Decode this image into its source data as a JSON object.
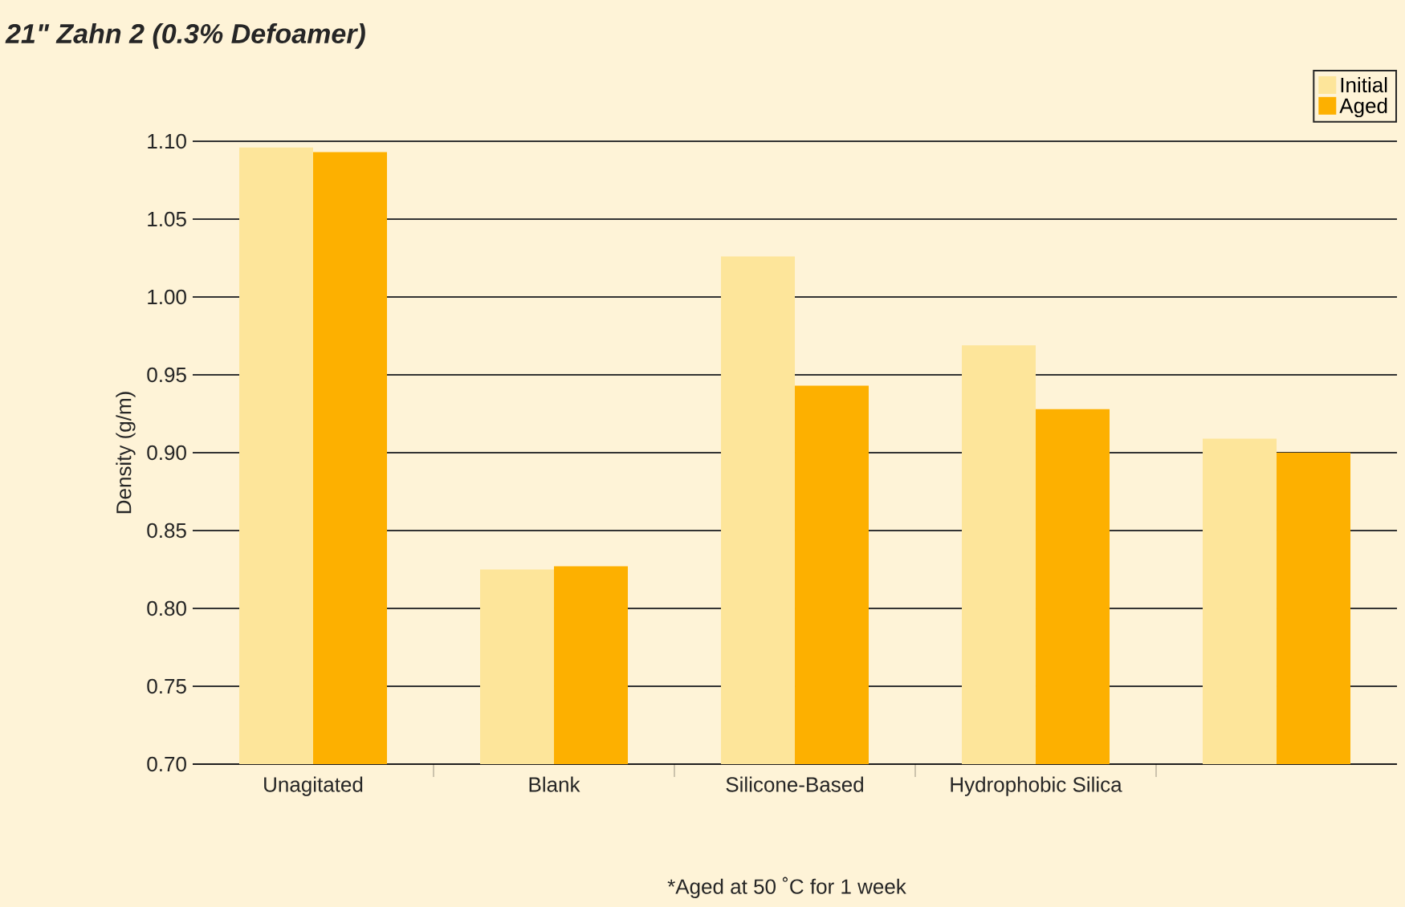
{
  "chart_data": {
    "type": "bar",
    "title": "21\" Zahn 2 (0.3% Defoamer)",
    "ylabel": "Density (g/m)",
    "categories": [
      "Unagitated",
      "Blank",
      "Silicone-Based",
      "Hydrophobic Silica",
      null
    ],
    "series": [
      {
        "name": "Initial",
        "color": "#fde59a",
        "values": [
          1.096,
          0.825,
          1.026,
          0.969,
          0.909
        ]
      },
      {
        "name": "Aged",
        "color": "#fdb000",
        "values": [
          1.093,
          0.827,
          0.943,
          0.928,
          0.9
        ]
      }
    ],
    "ylim": [
      0.7,
      1.1
    ],
    "yticks": [
      {
        "value": 0.7,
        "label": "0.70"
      },
      0.75,
      {
        "value": 0.8,
        "label": "0.80"
      },
      0.85,
      {
        "value": 0.9,
        "label": "0.90"
      },
      0.95,
      {
        "value": 1.0,
        "label": "1.00"
      },
      1.05,
      {
        "value": 1.1,
        "label": "1.10"
      }
    ],
    "grid": "y",
    "legend": "top right",
    "annotations": [
      "*Aged at 50 ˚C for 1 week"
    ]
  }
}
